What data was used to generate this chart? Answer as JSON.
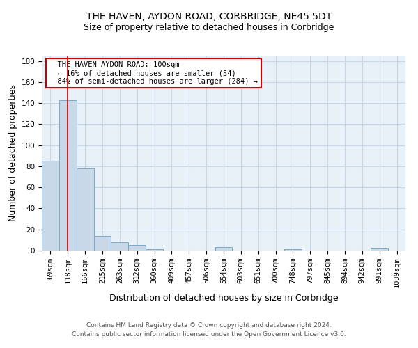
{
  "title": "THE HAVEN, AYDON ROAD, CORBRIDGE, NE45 5DT",
  "subtitle": "Size of property relative to detached houses in Corbridge",
  "xlabel": "Distribution of detached houses by size in Corbridge",
  "ylabel": "Number of detached properties",
  "footnote1": "Contains HM Land Registry data © Crown copyright and database right 2024.",
  "footnote2": "Contains public sector information licensed under the Open Government Licence v3.0.",
  "bins": [
    "69sqm",
    "118sqm",
    "166sqm",
    "215sqm",
    "263sqm",
    "312sqm",
    "360sqm",
    "409sqm",
    "457sqm",
    "506sqm",
    "554sqm",
    "603sqm",
    "651sqm",
    "700sqm",
    "748sqm",
    "797sqm",
    "845sqm",
    "894sqm",
    "942sqm",
    "991sqm",
    "1039sqm"
  ],
  "values": [
    85,
    143,
    78,
    14,
    8,
    5,
    1,
    0,
    0,
    0,
    3,
    0,
    0,
    0,
    1,
    0,
    0,
    0,
    0,
    2,
    0
  ],
  "bar_color": "#c8d8e8",
  "bar_edge_color": "#7aaac8",
  "red_line_x": 0.98,
  "annotation_text": "  THE HAVEN AYDON ROAD: 100sqm\n  ← 16% of detached houses are smaller (54)\n  84% of semi-detached houses are larger (284) →",
  "annotation_box_color": "#ffffff",
  "annotation_box_edge": "#cc0000",
  "ylim": [
    0,
    185
  ],
  "yticks": [
    0,
    20,
    40,
    60,
    80,
    100,
    120,
    140,
    160,
    180
  ],
  "grid_color": "#c8d8e8",
  "bg_color": "#e8f0f8",
  "red_line_color": "#cc0000",
  "title_fontsize": 10,
  "subtitle_fontsize": 9,
  "axis_label_fontsize": 9,
  "tick_fontsize": 7.5,
  "annotation_fontsize": 7.5,
  "footnote_fontsize": 6.5
}
